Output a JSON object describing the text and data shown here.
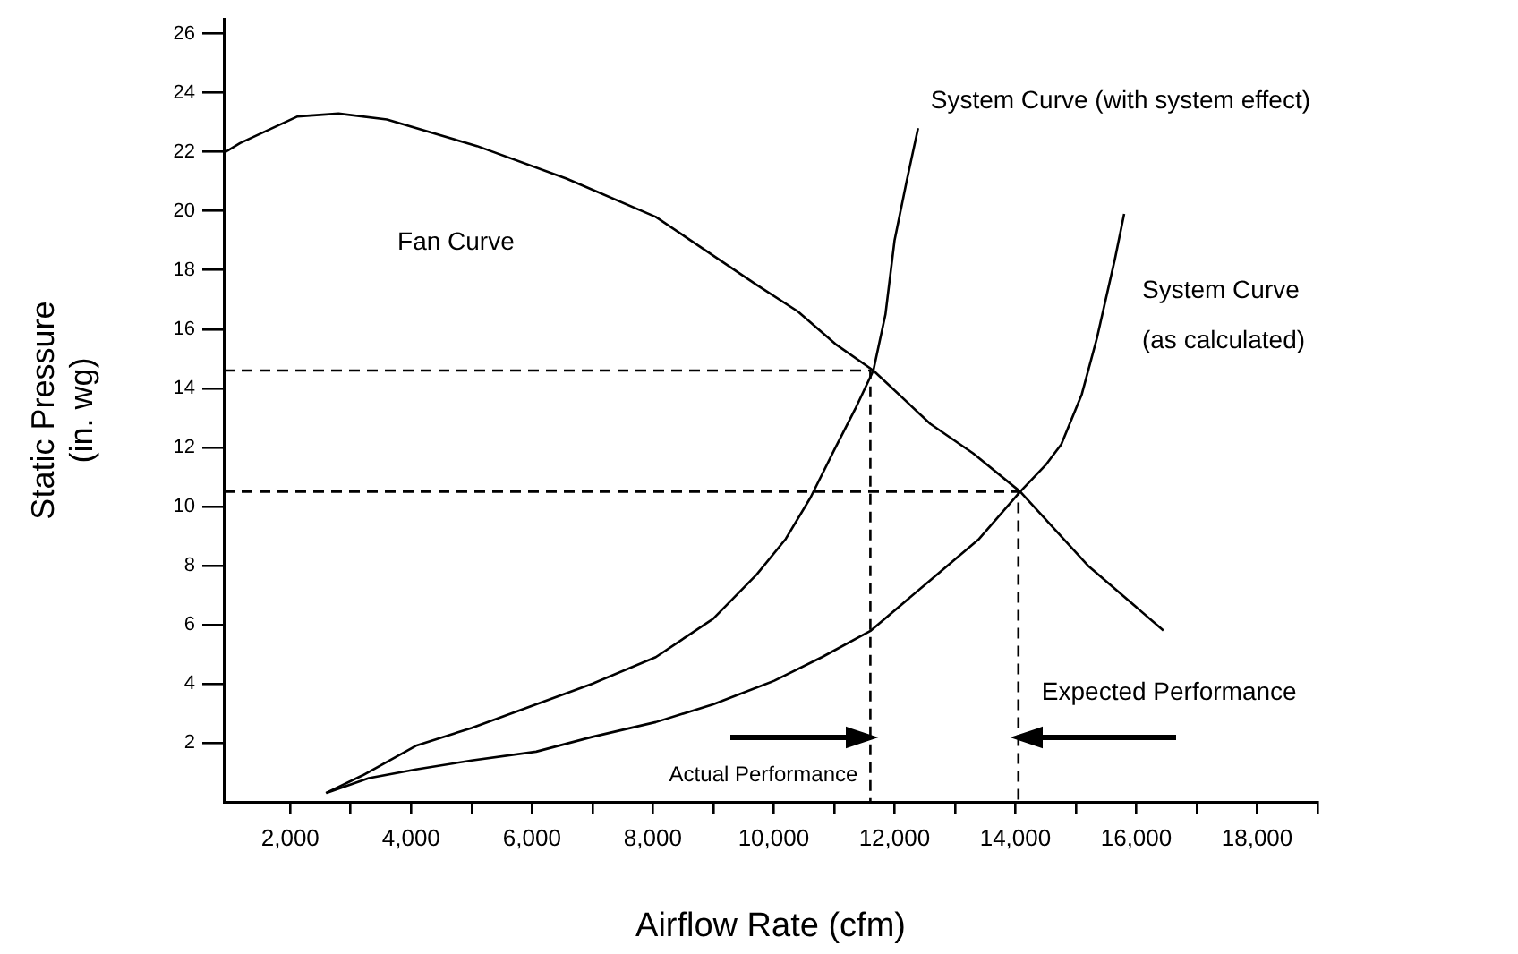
{
  "chart_data": {
    "type": "line",
    "xlabel": "Airflow Rate (cfm)",
    "ylabel": "Static Pressure\n(in. wg)",
    "xlim": [
      900,
      19000
    ],
    "ylim": [
      0,
      26.5
    ],
    "xticks": [
      {
        "value": 2000,
        "label": "2,000"
      },
      {
        "value": 3000,
        "label": null
      },
      {
        "value": 4000,
        "label": "4,000"
      },
      {
        "value": 5000,
        "label": null
      },
      {
        "value": 6000,
        "label": "6,000"
      },
      {
        "value": 7000,
        "label": null
      },
      {
        "value": 8000,
        "label": "8,000"
      },
      {
        "value": 9000,
        "label": null
      },
      {
        "value": 10000,
        "label": "10,000"
      },
      {
        "value": 11000,
        "label": null
      },
      {
        "value": 12000,
        "label": "12,000"
      },
      {
        "value": 13000,
        "label": null
      },
      {
        "value": 14000,
        "label": "14,000"
      },
      {
        "value": 15000,
        "label": null
      },
      {
        "value": 16000,
        "label": "16,000"
      },
      {
        "value": 17000,
        "label": null
      },
      {
        "value": 18000,
        "label": "18,000"
      },
      {
        "value": 19000,
        "label": null
      }
    ],
    "yticks": [
      2,
      4,
      6,
      8,
      10,
      12,
      14,
      16,
      18,
      20,
      22,
      24,
      26
    ],
    "grid": false,
    "legend": false,
    "marker": "none",
    "series": [
      {
        "name": "Fan Curve",
        "color": "#000000",
        "x": [
          930,
          1170,
          2120,
          2800,
          3600,
          5090,
          6570,
          8050,
          9720,
          10400,
          11020,
          11650,
          12590,
          13300,
          14080,
          15200,
          16450
        ],
        "values": [
          22.0,
          22.3,
          23.2,
          23.3,
          23.1,
          22.2,
          21.1,
          19.8,
          17.5,
          16.6,
          15.5,
          14.6,
          12.8,
          11.8,
          10.5,
          8.0,
          5.8
        ]
      },
      {
        "name": "System Curve (with system effect)",
        "color": "#000000",
        "x": [
          2590,
          3200,
          4080,
          5000,
          6070,
          7000,
          8050,
          9000,
          9720,
          10200,
          10610,
          11000,
          11350,
          11650,
          11850,
          12000,
          12200,
          12390
        ],
        "values": [
          0.3,
          0.9,
          1.9,
          2.5,
          3.3,
          4.0,
          4.9,
          6.2,
          7.7,
          8.9,
          10.3,
          11.9,
          13.3,
          14.6,
          16.5,
          19.0,
          21.0,
          22.8
        ]
      },
      {
        "name": "System Curve (as calculated)",
        "color": "#000000",
        "x": [
          2600,
          3300,
          4080,
          5000,
          6070,
          7000,
          8050,
          9000,
          10010,
          10800,
          11610,
          12590,
          13400,
          14080,
          14500,
          14760,
          15100,
          15350,
          15650,
          15800
        ],
        "values": [
          0.3,
          0.8,
          1.1,
          1.4,
          1.7,
          2.2,
          2.7,
          3.3,
          4.1,
          4.9,
          5.8,
          7.5,
          8.9,
          10.5,
          11.4,
          12.1,
          13.8,
          15.7,
          18.4,
          19.9
        ]
      },
      {
        "color": "#000000",
        "line_style": "dashed",
        "x": [
          900,
          11600,
          11600
        ],
        "values": [
          14.6,
          14.6,
          0
        ]
      },
      {
        "color": "#000000",
        "line_style": "dashed",
        "x": [
          900,
          14050,
          14050
        ],
        "values": [
          10.5,
          10.5,
          0
        ]
      }
    ],
    "annotations": [
      "Actual Performance",
      "Expected Performance"
    ]
  }
}
